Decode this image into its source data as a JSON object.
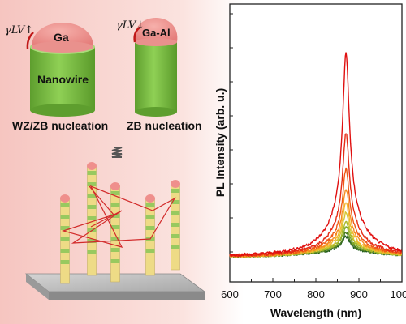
{
  "left_panel": {
    "gamma_up": "γLV↑",
    "gamma_down": "γLV↓",
    "droplet_ga": "Ga",
    "droplet_ga_al": "Ga-Al",
    "nanowire_label": "Nanowire",
    "caption_left": "WZ/ZB nucleation",
    "caption_right": "ZB nucleation"
  },
  "colors": {
    "droplet": "#ef8f8c",
    "cylinder": "#7fc24a",
    "nanowire_yellow": "#eedb86",
    "nanowire_green": "#98c95f",
    "light_path": "#d22a2a",
    "substrate": "#b9b9b9"
  },
  "chart_data": {
    "type": "line",
    "xlabel": "Wavelength (nm)",
    "ylabel": "PL Intensity (arb. u.)",
    "xlim": [
      600,
      1000
    ],
    "xticks": [
      600,
      700,
      800,
      900,
      1000
    ],
    "peak_nm": 870,
    "series": [
      {
        "color": "#1e5a1e",
        "amplitude": 0.08
      },
      {
        "color": "#4a7a22",
        "amplitude": 0.1
      },
      {
        "color": "#7fa82a",
        "amplitude": 0.13
      },
      {
        "color": "#a9b92a",
        "amplitude": 0.16
      },
      {
        "color": "#d3c632",
        "amplitude": 0.2
      },
      {
        "color": "#f2b72c",
        "amplitude": 0.25
      },
      {
        "color": "#f58d20",
        "amplitude": 0.32
      },
      {
        "color": "#ef5a16",
        "amplitude": 0.42
      },
      {
        "color": "#e52c16",
        "amplitude": 0.6
      },
      {
        "color": "#e01010",
        "amplitude": 1.0
      }
    ]
  }
}
